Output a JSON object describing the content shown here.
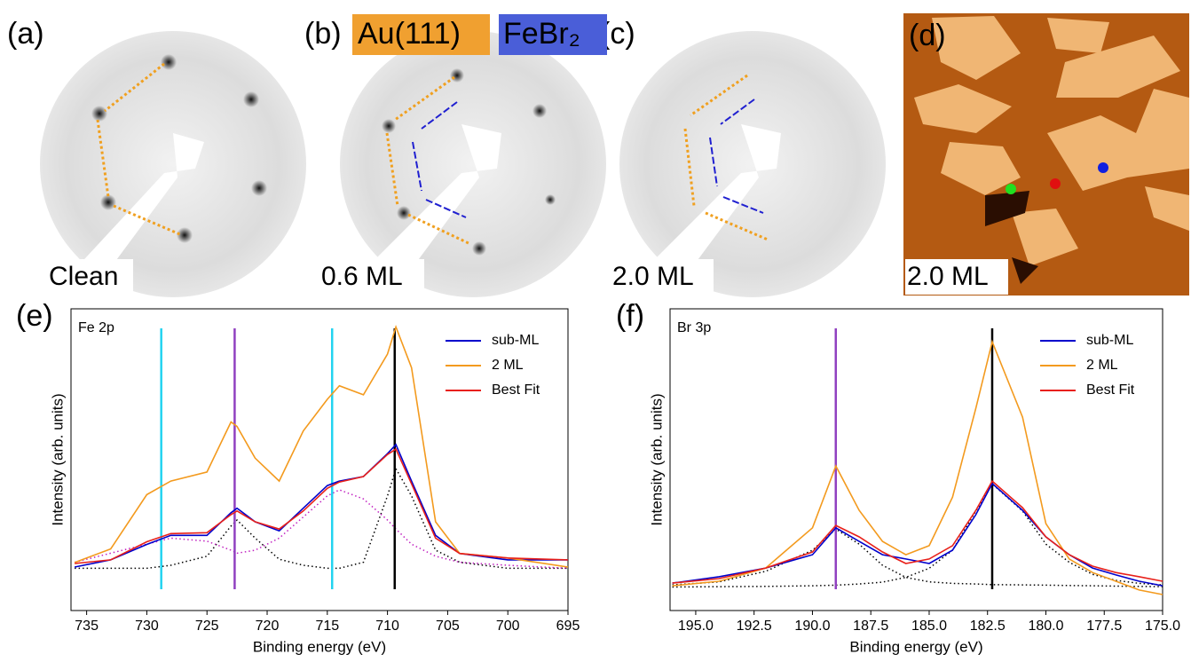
{
  "images": [
    {
      "panel_label": "(a)",
      "caption": "Clean"
    },
    {
      "panel_label": "(b)",
      "caption": "0.6 ML"
    },
    {
      "panel_label": "(c)",
      "caption": "2.0 ML"
    },
    {
      "panel_label": "(d)",
      "caption": "2.0 ML"
    }
  ],
  "tags": [
    "Au(111)",
    "FeBr₂"
  ],
  "chart_data": [
    {
      "type": "line",
      "panel_label": "(e)",
      "title": "Fe 2p",
      "x_label": "Binding energy (eV)",
      "y_label": "Intensity (arb. units)",
      "xlim": [
        736.3,
        695
      ],
      "xticks": [
        735,
        730,
        725,
        720,
        715,
        710,
        705,
        700,
        695
      ],
      "ylim": [
        0,
        1
      ],
      "x": [
        736,
        733,
        730,
        728,
        725,
        723,
        722.5,
        721,
        719,
        717,
        715,
        714,
        712,
        710,
        709.3,
        708,
        706,
        704,
        700,
        695
      ],
      "series": [
        {
          "name": "sub-ML",
          "color": "#0000cc",
          "values": [
            0.144,
            0.168,
            0.219,
            0.249,
            0.249,
            0.324,
            0.339,
            0.294,
            0.264,
            0.339,
            0.414,
            0.429,
            0.444,
            0.52,
            0.55,
            0.429,
            0.249,
            0.189,
            0.168,
            0.168
          ]
        },
        {
          "name": "2 ML",
          "color": "#f39a1e",
          "values": [
            0.159,
            0.204,
            0.384,
            0.429,
            0.459,
            0.625,
            0.61,
            0.505,
            0.429,
            0.595,
            0.7,
            0.745,
            0.715,
            0.85,
            0.94,
            0.805,
            0.294,
            0.189,
            0.174,
            0.144
          ]
        },
        {
          "name": "Best Fit",
          "color": "#e8201a",
          "values": [
            0.156,
            0.168,
            0.228,
            0.255,
            0.258,
            0.318,
            0.33,
            0.294,
            0.27,
            0.33,
            0.405,
            0.426,
            0.444,
            0.517,
            0.535,
            0.42,
            0.24,
            0.189,
            0.174,
            0.168
          ]
        }
      ],
      "components": [
        {
          "color": "#000000",
          "values": [
            0.14,
            0.14,
            0.14,
            0.15,
            0.18,
            0.28,
            0.3,
            0.24,
            0.17,
            0.15,
            0.14,
            0.14,
            0.16,
            0.38,
            0.47,
            0.38,
            0.2,
            0.16,
            0.14,
            0.14
          ]
        },
        {
          "color": "#c020c0",
          "values": [
            0.16,
            0.19,
            0.22,
            0.24,
            0.23,
            0.2,
            0.19,
            0.2,
            0.24,
            0.31,
            0.38,
            0.4,
            0.37,
            0.3,
            0.27,
            0.22,
            0.18,
            0.16,
            0.15,
            0.14
          ]
        }
      ],
      "vlines": [
        {
          "x": 728.8,
          "color": "#22d3f0"
        },
        {
          "x": 722.7,
          "color": "#9040c0"
        },
        {
          "x": 714.6,
          "color": "#22d3f0"
        },
        {
          "x": 709.4,
          "color": "#000000"
        }
      ]
    },
    {
      "type": "line",
      "panel_label": "(f)",
      "title": "Br 3p",
      "x_label": "Binding energy (eV)",
      "y_label": "Intensity (arb. units)",
      "xlim": [
        196.1,
        175
      ],
      "xticks": [
        {
          "value": 195,
          "label": "195.0"
        },
        192.5,
        {
          "value": 190,
          "label": "190.0"
        },
        187.5,
        {
          "value": 185,
          "label": "185.0"
        },
        182.5,
        {
          "value": 180,
          "label": "180.0"
        },
        177.5,
        {
          "value": 175,
          "label": "175.0"
        }
      ],
      "ylim": [
        0,
        1
      ],
      "x": [
        196,
        194,
        192,
        190,
        189,
        188,
        187,
        186,
        185,
        184,
        183,
        182.3,
        181,
        180,
        179,
        178,
        177,
        176,
        175
      ],
      "series": [
        {
          "name": "sub-ML",
          "color": "#0000cc",
          "values": [
            0.091,
            0.112,
            0.141,
            0.185,
            0.274,
            0.229,
            0.185,
            0.171,
            0.156,
            0.2,
            0.318,
            0.421,
            0.332,
            0.244,
            0.185,
            0.141,
            0.118,
            0.097,
            0.082
          ]
        },
        {
          "name": "2 ML",
          "color": "#f39a1e",
          "values": [
            0.082,
            0.097,
            0.141,
            0.274,
            0.479,
            0.332,
            0.229,
            0.185,
            0.215,
            0.376,
            0.671,
            0.891,
            0.641,
            0.288,
            0.171,
            0.126,
            0.097,
            0.068,
            0.053
          ]
        },
        {
          "name": "Best Fit",
          "color": "#e8201a",
          "values": [
            0.091,
            0.106,
            0.141,
            0.194,
            0.282,
            0.244,
            0.194,
            0.156,
            0.171,
            0.215,
            0.332,
            0.429,
            0.341,
            0.244,
            0.185,
            0.147,
            0.126,
            0.112,
            0.097
          ]
        }
      ],
      "components": [
        {
          "color": "#000000",
          "values": [
            0.085,
            0.095,
            0.13,
            0.2,
            0.27,
            0.22,
            0.15,
            0.11,
            0.095,
            0.09,
            0.088,
            0.086,
            0.085,
            0.084,
            0.083,
            0.082,
            0.081,
            0.08,
            0.079
          ]
        },
        {
          "color": "#000000",
          "values": [
            0.078,
            0.079,
            0.08,
            0.082,
            0.084,
            0.088,
            0.094,
            0.11,
            0.14,
            0.2,
            0.33,
            0.42,
            0.33,
            0.22,
            0.16,
            0.12,
            0.1,
            0.09,
            0.085
          ]
        }
      ],
      "vlines": [
        {
          "x": 189.0,
          "color": "#9040c0"
        },
        {
          "x": 182.3,
          "color": "#000000"
        }
      ]
    }
  ]
}
